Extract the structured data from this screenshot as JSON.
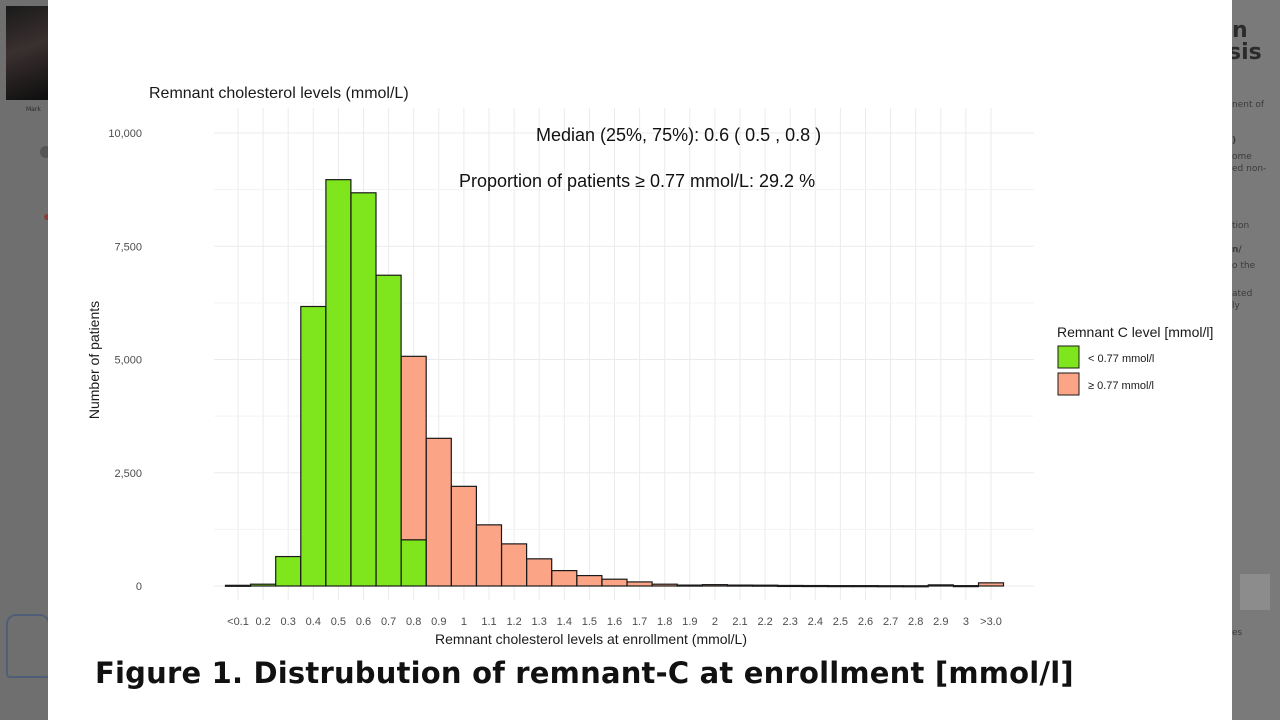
{
  "background_slide": {
    "right_title_lines": [
      "n",
      "sis"
    ],
    "right_snippets": [
      "nent of",
      ")",
      "ome",
      "ed non-",
      "tion",
      "n/",
      "o the",
      "ated",
      "ly",
      "es"
    ],
    "speaker_caption": "Mark"
  },
  "figure_caption": "Figure 1. Distrubution of remnant-C at enrollment [mmol/l]",
  "chart_data": {
    "type": "bar",
    "title": "Remnant cholesterol levels (mmol/L)",
    "xlabel": "Remnant cholesterol levels at enrollment (mmol/L)",
    "ylabel": "Number of patients",
    "ylim": [
      0,
      10000
    ],
    "y_ticks": [
      0,
      2500,
      5000,
      7500,
      10000
    ],
    "y_tick_labels": [
      "0",
      "2,500",
      "5,000",
      "7,500",
      "10,000"
    ],
    "categories": [
      "<0.1",
      "0.2",
      "0.3",
      "0.4",
      "0.5",
      "0.6",
      "0.7",
      "0.8",
      "0.9",
      "1",
      "1.1",
      "1.2",
      "1.3",
      "1.4",
      "1.5",
      "1.6",
      "1.7",
      "1.8",
      "1.9",
      "2",
      "2.1",
      "2.2",
      "2.3",
      "2.4",
      "2.5",
      "2.6",
      "2.7",
      "2.8",
      "2.9",
      "3",
      ">3.0"
    ],
    "series": [
      {
        "name": "< 0.77 mmol/l",
        "color": "#7FE51C",
        "values": [
          15,
          40,
          650,
          6170,
          8970,
          8680,
          6860,
          1020,
          0,
          0,
          0,
          0,
          0,
          0,
          0,
          0,
          0,
          0,
          0,
          0,
          0,
          0,
          0,
          0,
          0,
          0,
          0,
          0,
          0,
          0,
          0
        ]
      },
      {
        "name": "≥ 0.77 mmol/l",
        "color": "#FCA486",
        "values": [
          0,
          0,
          0,
          0,
          0,
          0,
          0,
          4050,
          3260,
          2200,
          1350,
          930,
          600,
          340,
          230,
          150,
          90,
          40,
          20,
          30,
          20,
          18,
          12,
          10,
          8,
          8,
          6,
          5,
          25,
          8,
          70
        ]
      }
    ],
    "annotations": [
      "Median (25%, 75%): 0.6 ( 0.5 , 0.8 )",
      "Proportion of patients ≥ 0.77 mmol/L: 29.2 %"
    ],
    "legend": {
      "title": "Remnant C level [mmol/l]",
      "placement": "right",
      "entries": [
        "< 0.77 mmol/l",
        "≥ 0.77 mmol/l"
      ]
    },
    "grid": true
  }
}
